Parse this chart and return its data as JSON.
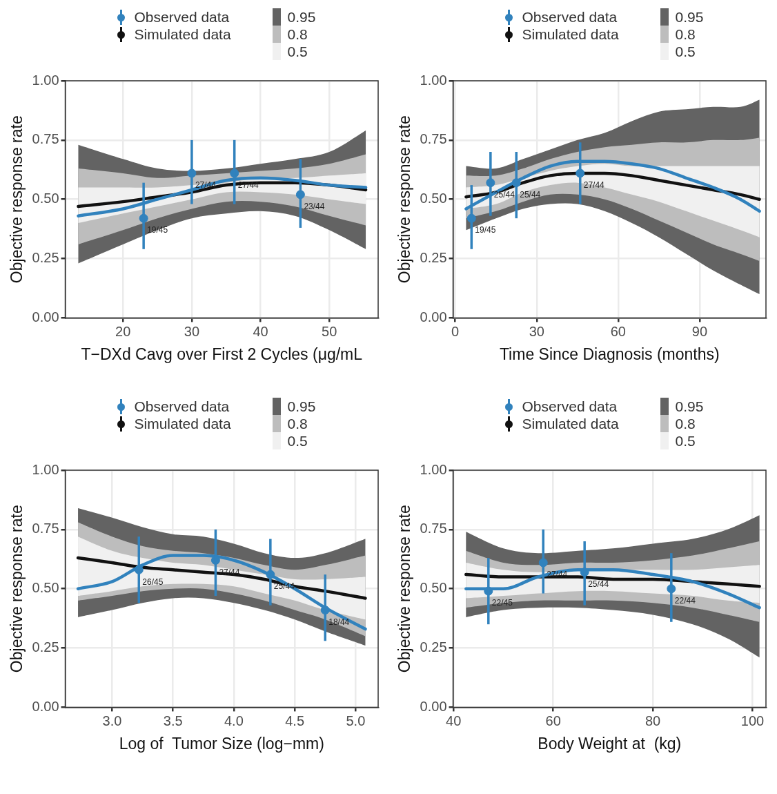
{
  "chart_data": [
    {
      "type": "line",
      "xlabel": "T−DXd Cavg over First 2 Cycles (μg/mL",
      "ylabel": "Objective response rate",
      "xlim": [
        11.6,
        57.1
      ],
      "xticks": [
        20,
        30,
        40,
        50
      ],
      "ylim": [
        0,
        1
      ],
      "yticks": [
        {
          "value": 0,
          "label": "0.00"
        },
        {
          "value": 0.25,
          "label": "0.25"
        },
        {
          "value": 0.5,
          "label": "0.50"
        },
        {
          "value": 0.75,
          "label": "0.75"
        },
        {
          "value": 1,
          "label": "1.00"
        }
      ],
      "grid": true,
      "legend": "top",
      "series": [
        {
          "name": "0.95",
          "type": "area",
          "color": "#636363",
          "x": [
            13.5,
            20,
            25,
            30,
            35,
            40,
            45,
            50,
            55.3
          ],
          "values": [
            null,
            null,
            null,
            null,
            null,
            null,
            null,
            null,
            null
          ],
          "lower": [
            0.23,
            0.31,
            0.37,
            0.42,
            0.44,
            0.45,
            0.43,
            0.37,
            0.29
          ],
          "upper": [
            0.73,
            0.67,
            0.63,
            0.62,
            0.63,
            0.65,
            0.67,
            0.7,
            0.79
          ]
        },
        {
          "name": "0.8",
          "type": "area",
          "color": "#bdbdbd",
          "x": [
            13.5,
            20,
            25,
            30,
            35,
            40,
            45,
            50,
            55.3
          ],
          "values": [
            null,
            null,
            null,
            null,
            null,
            null,
            null,
            null,
            null
          ],
          "lower": [
            0.31,
            0.37,
            0.42,
            0.46,
            0.49,
            0.49,
            0.47,
            0.43,
            0.39
          ],
          "upper": [
            0.63,
            0.61,
            0.59,
            0.6,
            0.61,
            0.62,
            0.63,
            0.65,
            0.69
          ]
        },
        {
          "name": "0.5",
          "type": "area",
          "color": "#f0f0f0",
          "x": [
            13.5,
            20,
            25,
            30,
            35,
            40,
            45,
            50,
            55.3
          ],
          "values": [
            null,
            null,
            null,
            null,
            null,
            null,
            null,
            null,
            null
          ],
          "lower": [
            0.4,
            0.44,
            0.47,
            0.5,
            0.53,
            0.53,
            0.52,
            0.5,
            0.48
          ],
          "upper": [
            0.55,
            0.55,
            0.55,
            0.56,
            0.57,
            0.59,
            0.59,
            0.6,
            0.61
          ]
        },
        {
          "name": "Observed data",
          "type": "scatter",
          "color": "#3182bd",
          "x": [
            23,
            30,
            36.2,
            45.8
          ],
          "values": [
            0.42,
            0.61,
            0.61,
            0.52
          ],
          "errors": [
            [
              0.29,
              0.57
            ],
            [
              0.48,
              0.75
            ],
            [
              0.48,
              0.75
            ],
            [
              0.38,
              0.67
            ]
          ],
          "value_labels": [
            "19/45",
            "27/44",
            "27/44",
            "23/44"
          ]
        },
        {
          "name": "Simulated data",
          "type": "line",
          "color": "#111111",
          "x": [
            13.5,
            20,
            25,
            30,
            35,
            40,
            45,
            50,
            55.3
          ],
          "values": [
            0.47,
            0.49,
            0.51,
            0.53,
            0.56,
            0.57,
            0.57,
            0.56,
            0.54
          ]
        },
        {
          "type": "line",
          "color": "#3182bd",
          "x": [
            13.5,
            20,
            25,
            30,
            35,
            40,
            45,
            50,
            55.3
          ],
          "values": [
            0.43,
            0.46,
            0.5,
            0.54,
            0.58,
            0.59,
            0.58,
            0.56,
            0.55
          ]
        }
      ]
    },
    {
      "type": "line",
      "xlabel": "Time Since Diagnosis (months)",
      "ylabel": "Objective response rate",
      "xlim": [
        -0.8,
        114.4
      ],
      "xticks": [
        0,
        30,
        60,
        90
      ],
      "ylim": [
        0,
        1
      ],
      "yticks": [
        {
          "value": 0,
          "label": "0.00"
        },
        {
          "value": 0.25,
          "label": "0.25"
        },
        {
          "value": 0.5,
          "label": "0.50"
        },
        {
          "value": 0.75,
          "label": "0.75"
        },
        {
          "value": 1,
          "label": "1.00"
        }
      ],
      "grid": true,
      "legend": "top",
      "series": [
        {
          "name": "0.95",
          "type": "area",
          "color": "#636363",
          "x": [
            4,
            15,
            25,
            35,
            45,
            55,
            65,
            75,
            85,
            95,
            105,
            112
          ],
          "values": [
            null,
            null,
            null,
            null,
            null,
            null,
            null,
            null,
            null,
            null,
            null,
            null
          ],
          "lower": [
            0.37,
            0.42,
            0.46,
            0.48,
            0.48,
            0.45,
            0.4,
            0.34,
            0.27,
            0.2,
            0.14,
            0.1
          ],
          "upper": [
            0.64,
            0.63,
            0.67,
            0.71,
            0.75,
            0.78,
            0.83,
            0.87,
            0.88,
            0.89,
            0.89,
            0.92
          ]
        },
        {
          "name": "0.8",
          "type": "area",
          "color": "#bdbdbd",
          "x": [
            4,
            15,
            25,
            35,
            45,
            55,
            65,
            75,
            85,
            95,
            105,
            112
          ],
          "values": [
            null,
            null,
            null,
            null,
            null,
            null,
            null,
            null,
            null,
            null,
            null,
            null
          ],
          "lower": [
            0.42,
            0.45,
            0.49,
            0.52,
            0.52,
            0.5,
            0.46,
            0.41,
            0.36,
            0.31,
            0.27,
            0.24
          ],
          "upper": [
            0.6,
            0.6,
            0.63,
            0.67,
            0.7,
            0.72,
            0.73,
            0.74,
            0.74,
            0.75,
            0.75,
            0.76
          ]
        },
        {
          "name": "0.5",
          "type": "area",
          "color": "#f0f0f0",
          "x": [
            4,
            15,
            25,
            35,
            45,
            55,
            65,
            75,
            85,
            95,
            105,
            112
          ],
          "values": [
            null,
            null,
            null,
            null,
            null,
            null,
            null,
            null,
            null,
            null,
            null,
            null
          ],
          "lower": [
            0.46,
            0.48,
            0.53,
            0.56,
            0.57,
            0.55,
            0.52,
            0.49,
            0.45,
            0.41,
            0.37,
            0.34
          ],
          "upper": [
            0.55,
            0.56,
            0.59,
            0.62,
            0.64,
            0.65,
            0.64,
            0.64,
            0.64,
            0.64,
            0.64,
            0.64
          ]
        },
        {
          "name": "Observed data",
          "type": "scatter",
          "color": "#3182bd",
          "x": [
            6,
            13,
            22.5,
            46
          ],
          "values": [
            0.42,
            0.57,
            0.57,
            0.61
          ],
          "errors": [
            [
              0.29,
              0.56
            ],
            [
              0.43,
              0.7
            ],
            [
              0.42,
              0.7
            ],
            [
              0.48,
              0.74
            ]
          ],
          "value_labels": [
            "19/45",
            "25/44",
            "25/44",
            "27/44"
          ]
        },
        {
          "name": "Simulated data",
          "type": "line",
          "color": "#111111",
          "x": [
            4,
            15,
            25,
            35,
            45,
            55,
            65,
            75,
            85,
            95,
            105,
            112
          ],
          "values": [
            0.51,
            0.53,
            0.57,
            0.6,
            0.61,
            0.61,
            0.6,
            0.58,
            0.56,
            0.54,
            0.52,
            0.5
          ]
        },
        {
          "type": "line",
          "color": "#3182bd",
          "x": [
            4,
            15,
            25,
            35,
            45,
            55,
            65,
            75,
            85,
            95,
            105,
            112
          ],
          "values": [
            0.46,
            0.53,
            0.59,
            0.64,
            0.66,
            0.66,
            0.65,
            0.63,
            0.59,
            0.55,
            0.5,
            0.45
          ]
        }
      ]
    },
    {
      "type": "line",
      "xlabel": "Log of  Tumor Size (log−mm)",
      "ylabel": "Objective response rate",
      "xlim": [
        2.615,
        5.185
      ],
      "xticks": [
        {
          "value": 3,
          "label": "3.0"
        },
        3.5,
        {
          "value": 4,
          "label": "4.0"
        },
        4.5,
        {
          "value": 5,
          "label": "5.0"
        }
      ],
      "ylim": [
        0,
        1
      ],
      "yticks": [
        {
          "value": 0,
          "label": "0.00"
        },
        {
          "value": 0.25,
          "label": "0.25"
        },
        {
          "value": 0.5,
          "label": "0.50"
        },
        {
          "value": 0.75,
          "label": "0.75"
        },
        {
          "value": 1,
          "label": "1.00"
        }
      ],
      "grid": true,
      "legend": "top",
      "series": [
        {
          "name": "0.95",
          "type": "area",
          "color": "#636363",
          "x": [
            2.72,
            3,
            3.25,
            3.5,
            3.75,
            4,
            4.25,
            4.5,
            4.75,
            5.08
          ],
          "values": [
            null,
            null,
            null,
            null,
            null,
            null,
            null,
            null,
            null,
            null
          ],
          "lower": [
            0.38,
            0.41,
            0.44,
            0.46,
            0.46,
            0.44,
            0.41,
            0.37,
            0.32,
            0.26
          ],
          "upper": [
            0.84,
            0.8,
            0.76,
            0.73,
            0.72,
            0.69,
            0.65,
            0.63,
            0.65,
            0.71
          ]
        },
        {
          "name": "0.8",
          "type": "area",
          "color": "#bdbdbd",
          "x": [
            2.72,
            3,
            3.25,
            3.5,
            3.75,
            4,
            4.25,
            4.5,
            4.75,
            5.08
          ],
          "values": [
            null,
            null,
            null,
            null,
            null,
            null,
            null,
            null,
            null,
            null
          ],
          "lower": [
            0.45,
            0.47,
            0.49,
            0.5,
            0.5,
            0.48,
            0.45,
            0.41,
            0.37,
            0.3
          ],
          "upper": [
            0.78,
            0.72,
            0.68,
            0.66,
            0.65,
            0.63,
            0.6,
            0.58,
            0.6,
            0.64
          ]
        },
        {
          "name": "0.5",
          "type": "area",
          "color": "#f0f0f0",
          "x": [
            2.72,
            3,
            3.25,
            3.5,
            3.75,
            4,
            4.25,
            4.5,
            4.75,
            5.08
          ],
          "values": [
            null,
            null,
            null,
            null,
            null,
            null,
            null,
            null,
            null,
            null
          ],
          "lower": [
            0.47,
            0.49,
            0.51,
            0.52,
            0.52,
            0.51,
            0.48,
            0.45,
            0.41,
            0.37
          ],
          "upper": [
            0.72,
            0.66,
            0.63,
            0.61,
            0.6,
            0.58,
            0.56,
            0.54,
            0.54,
            0.55
          ]
        },
        {
          "name": "Observed data",
          "type": "scatter",
          "color": "#3182bd",
          "x": [
            3.22,
            3.85,
            4.3,
            4.75
          ],
          "values": [
            0.58,
            0.62,
            0.56,
            0.41
          ],
          "errors": [
            [
              0.44,
              0.72
            ],
            [
              0.47,
              0.75
            ],
            [
              0.43,
              0.71
            ],
            [
              0.28,
              0.56
            ]
          ],
          "value_labels": [
            "26/45",
            "27/44",
            "25/44",
            "18/44"
          ]
        },
        {
          "name": "Simulated data",
          "type": "line",
          "color": "#111111",
          "x": [
            2.72,
            3,
            3.25,
            3.5,
            3.75,
            4,
            4.25,
            4.5,
            4.75,
            5.08
          ],
          "values": [
            0.63,
            0.61,
            0.59,
            0.58,
            0.57,
            0.56,
            0.54,
            0.51,
            0.49,
            0.46
          ]
        },
        {
          "type": "line",
          "color": "#3182bd",
          "x": [
            2.72,
            3,
            3.25,
            3.5,
            3.75,
            4,
            4.25,
            4.5,
            4.75,
            5.08
          ],
          "values": [
            0.5,
            0.53,
            0.6,
            0.64,
            0.64,
            0.62,
            0.57,
            0.5,
            0.42,
            0.33
          ]
        }
      ]
    },
    {
      "type": "line",
      "xlabel": "Body Weight at  (kg)",
      "ylabel": "Objective response rate",
      "xlim": [
        39.9,
        102.7
      ],
      "xticks": [
        40,
        60,
        80,
        100
      ],
      "ylim": [
        0,
        1
      ],
      "yticks": [
        {
          "value": 0,
          "label": "0.00"
        },
        {
          "value": 0.25,
          "label": "0.25"
        },
        {
          "value": 0.5,
          "label": "0.50"
        },
        {
          "value": 0.75,
          "label": "0.75"
        },
        {
          "value": 1,
          "label": "1.00"
        }
      ],
      "grid": true,
      "legend": "top",
      "series": [
        {
          "name": "0.95",
          "type": "area",
          "color": "#636363",
          "x": [
            42.5,
            50,
            57,
            65,
            72,
            80,
            88,
            95,
            101.4
          ],
          "values": [
            null,
            null,
            null,
            null,
            null,
            null,
            null,
            null,
            null
          ],
          "lower": [
            0.38,
            0.41,
            0.42,
            0.42,
            0.41,
            0.39,
            0.35,
            0.29,
            0.21
          ],
          "upper": [
            0.74,
            0.67,
            0.65,
            0.66,
            0.67,
            0.69,
            0.71,
            0.75,
            0.81
          ]
        },
        {
          "name": "0.8",
          "type": "area",
          "color": "#bdbdbd",
          "x": [
            42.5,
            50,
            57,
            65,
            72,
            80,
            88,
            95,
            101.4
          ],
          "values": [
            null,
            null,
            null,
            null,
            null,
            null,
            null,
            null,
            null
          ],
          "lower": [
            0.42,
            0.44,
            0.45,
            0.45,
            0.45,
            0.44,
            0.42,
            0.39,
            0.36
          ],
          "upper": [
            0.66,
            0.61,
            0.6,
            0.61,
            0.61,
            0.62,
            0.64,
            0.67,
            0.7
          ]
        },
        {
          "name": "0.5",
          "type": "area",
          "color": "#f0f0f0",
          "x": [
            42.5,
            50,
            57,
            65,
            72,
            80,
            88,
            95,
            101.4
          ],
          "values": [
            null,
            null,
            null,
            null,
            null,
            null,
            null,
            null,
            null
          ],
          "lower": [
            0.46,
            0.47,
            0.48,
            0.49,
            0.49,
            0.48,
            0.47,
            0.45,
            0.44
          ],
          "upper": [
            0.61,
            0.58,
            0.57,
            0.58,
            0.58,
            0.58,
            0.58,
            0.59,
            0.6
          ]
        },
        {
          "name": "Observed data",
          "type": "scatter",
          "color": "#3182bd",
          "x": [
            47,
            58,
            66.3,
            83.7
          ],
          "values": [
            0.49,
            0.61,
            0.57,
            0.5
          ],
          "errors": [
            [
              0.35,
              0.63
            ],
            [
              0.48,
              0.75
            ],
            [
              0.43,
              0.7
            ],
            [
              0.36,
              0.65
            ]
          ],
          "value_labels": [
            "22/45",
            "27/44",
            "25/44",
            "22/44"
          ]
        },
        {
          "name": "Simulated data",
          "type": "line",
          "color": "#111111",
          "x": [
            42.5,
            50,
            57,
            65,
            72,
            80,
            88,
            95,
            101.4
          ],
          "values": [
            0.56,
            0.55,
            0.55,
            0.55,
            0.54,
            0.54,
            0.53,
            0.52,
            0.51
          ]
        },
        {
          "type": "line",
          "color": "#3182bd",
          "x": [
            42.5,
            50,
            57,
            65,
            72,
            80,
            88,
            95,
            101.4
          ],
          "values": [
            0.5,
            0.5,
            0.55,
            0.58,
            0.58,
            0.56,
            0.53,
            0.48,
            0.42
          ]
        }
      ]
    }
  ]
}
